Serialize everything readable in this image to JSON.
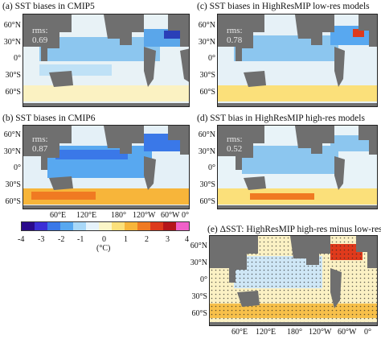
{
  "panels": {
    "a": {
      "title": "(a) SST biases in CMIP5",
      "rms": "rms: 0.69"
    },
    "b": {
      "title": "(b) SST biases in CMIP6",
      "rms": "rms: 0.87"
    },
    "c": {
      "title": "(c) SST biases in HighResMIP low-res models",
      "rms": "rms: 0.78"
    },
    "d": {
      "title": "(d) SST bias in HighResMIP high-res models",
      "rms": "rms: 0.52"
    },
    "e": {
      "title": "(e) ΔSST: HighResMIP high-res minus low-res"
    }
  },
  "lat_labels": [
    "60°N",
    "30°N",
    "0°",
    "30°S",
    "60°S"
  ],
  "lon_labels": [
    "60°E",
    "120°E",
    "180°",
    "120°W",
    "60°W",
    "0°"
  ],
  "colorbar": {
    "ticks": [
      "-4",
      "-3",
      "-2",
      "-1",
      "0",
      "1",
      "2",
      "3",
      "4"
    ],
    "unit": "(°C)",
    "colors": [
      "#2a0a8c",
      "#3b2fd6",
      "#3a78e8",
      "#58a8f0",
      "#a8d8f8",
      "#e6f3fb",
      "#fbf6c8",
      "#fbe07a",
      "#f7b53a",
      "#f07a22",
      "#dd3a1c",
      "#b5151a",
      "#f060c8"
    ]
  }
}
